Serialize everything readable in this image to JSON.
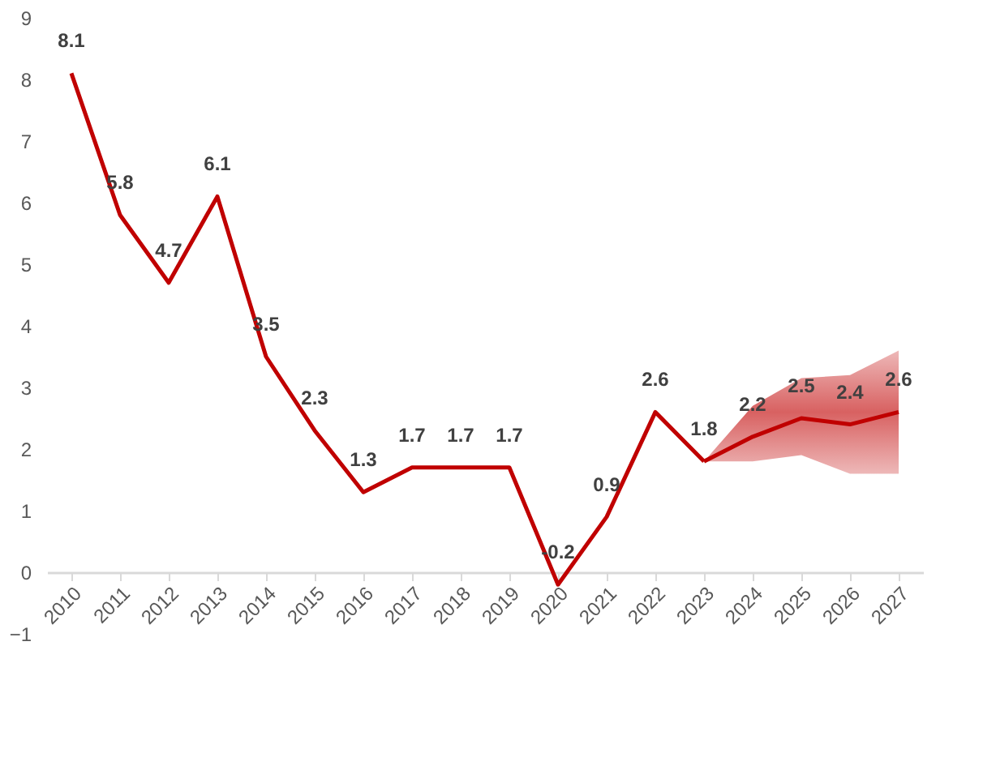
{
  "chart_data": {
    "type": "line",
    "categories": [
      "2010",
      "2011",
      "2012",
      "2013",
      "2014",
      "2015",
      "2016",
      "2017",
      "2018",
      "2019",
      "2020",
      "2021",
      "2022",
      "2023",
      "2024",
      "2025",
      "2026",
      "2027"
    ],
    "ylim": [
      -1,
      9
    ],
    "yticks": [
      -1,
      0,
      1,
      2,
      3,
      4,
      5,
      6,
      7,
      8,
      9
    ],
    "grid": false,
    "line_style": "solid",
    "series": [
      {
        "type": "line",
        "color": "#c00000",
        "values": [
          8.1,
          5.8,
          4.7,
          6.1,
          3.5,
          2.3,
          1.3,
          1.7,
          1.7,
          1.7,
          -0.2,
          0.9,
          2.6,
          1.8,
          null,
          null,
          null,
          null
        ],
        "value_labels": [
          "8.1",
          "5.8",
          "4.7",
          "6.1",
          "3.5",
          "2.3",
          "1.3",
          "1.7",
          "1.7",
          "1.7",
          "-0.2",
          "0.9",
          "2.6",
          "1.8",
          null,
          null,
          null,
          null
        ]
      },
      {
        "type": "line",
        "color": "#c00000",
        "values": [
          null,
          null,
          null,
          null,
          null,
          null,
          null,
          null,
          null,
          null,
          null,
          null,
          null,
          1.8,
          2.2,
          2.5,
          2.4,
          2.6
        ],
        "lower": [
          null,
          null,
          null,
          null,
          null,
          null,
          null,
          null,
          null,
          null,
          null,
          null,
          null,
          1.8,
          1.8,
          1.9,
          1.6,
          1.6
        ],
        "upper": [
          null,
          null,
          null,
          null,
          null,
          null,
          null,
          null,
          null,
          null,
          null,
          null,
          null,
          1.8,
          2.7,
          3.15,
          3.2,
          3.6
        ],
        "value_labels": [
          null,
          null,
          null,
          null,
          null,
          null,
          null,
          null,
          null,
          null,
          null,
          null,
          null,
          null,
          "2.2",
          "2.5",
          "2.4",
          "2.6"
        ]
      }
    ]
  }
}
